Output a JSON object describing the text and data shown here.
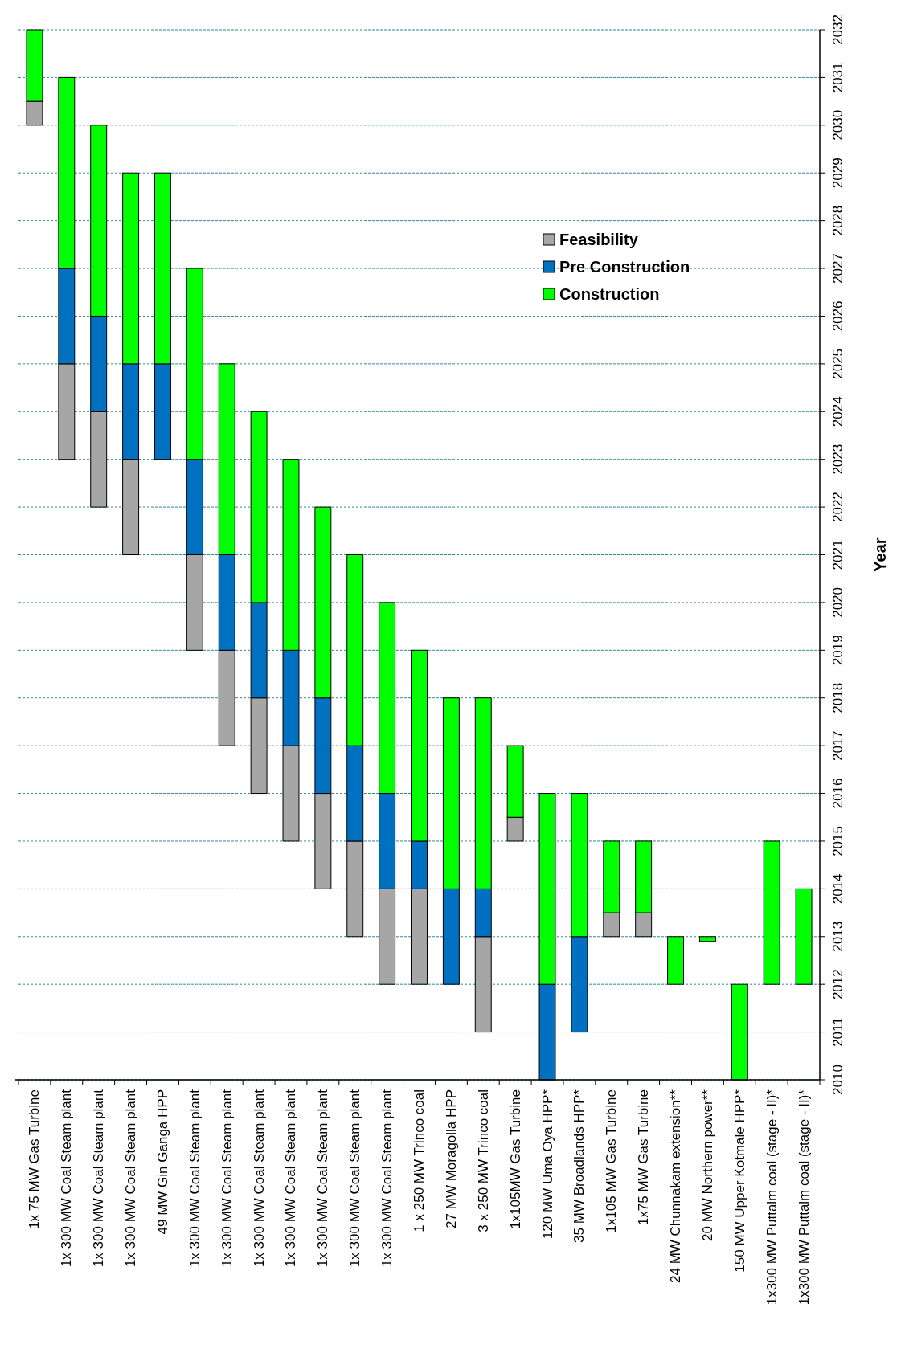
{
  "chart_data": {
    "type": "bar",
    "ylabel": "Year",
    "categories": [
      "1x 75 MW Gas Turbine",
      "1x 300 MW Coal Steam plant",
      "1x 300 MW Coal Steam plant",
      "1x 300 MW Coal Steam plant",
      "49 MW Gin Ganga HPP",
      "1x 300 MW Coal Steam plant",
      "1x 300 MW Coal Steam plant",
      "1x 300 MW Coal Steam plant",
      "1x 300 MW Coal Steam plant",
      "1x 300 MW Coal Steam plant",
      "1x 300 MW Coal Steam plant",
      "1x 300 MW Coal Steam plant",
      "1 x 250 MW Trinco coal",
      "27 MW Moragolla HPP",
      "3 x 250 MW Trinco coal",
      "1x105MW Gas Turbine",
      "120 MW Uma Oya HPP*",
      "35 MW Broadlands HPP*",
      "1x105 MW Gas Turbine",
      "1x75 MW Gas Turbine",
      "24 MW Chunnakam extension**",
      "20 MW Northern power**",
      "150 MW Upper Kotmale HPP*",
      "1x300 MW Puttalm coal (stage - II)*",
      "1x300 MW Puttalm coal (stage - II)*"
    ],
    "series": [
      {
        "name": "Feasibility",
        "color": "#a6a6a6",
        "base": [
          2030,
          2023,
          2022,
          2021,
          null,
          2019,
          2017,
          2016,
          2015,
          2014,
          2013,
          2012,
          2012,
          null,
          2011,
          2015,
          null,
          null,
          2013,
          2013,
          null,
          null,
          null,
          null,
          null
        ],
        "values": [
          0.5,
          2,
          2,
          2,
          null,
          2,
          2,
          2,
          2,
          2,
          2,
          2,
          2,
          null,
          2,
          0.5,
          null,
          null,
          0.5,
          0.5,
          null,
          null,
          null,
          null,
          null
        ]
      },
      {
        "name": "Pre Construction",
        "color": "#0070c0",
        "base": [
          null,
          2025,
          2024,
          2023,
          2023,
          2021,
          2019,
          2018,
          2017,
          2016,
          2015,
          2014,
          2014,
          2012,
          2013,
          null,
          2010,
          2011,
          null,
          null,
          null,
          null,
          null,
          null,
          null
        ],
        "values": [
          null,
          2,
          2,
          2,
          2,
          2,
          2,
          2,
          2,
          2,
          2,
          2,
          1,
          2,
          1,
          null,
          2,
          2,
          null,
          null,
          null,
          null,
          null,
          null,
          null
        ]
      },
      {
        "name": "Construction",
        "color": "#00ff00",
        "base": [
          2030.5,
          2027,
          2026,
          2025,
          2025,
          2023,
          2021,
          2020,
          2019,
          2018,
          2017,
          2016,
          2015,
          2014,
          2014,
          2015.5,
          2012,
          2013,
          2013.5,
          2013.5,
          2012,
          2012.9,
          2010,
          2012,
          2012
        ],
        "values": [
          1.5,
          4,
          4,
          4,
          4,
          4,
          4,
          4,
          4,
          4,
          4,
          4,
          4,
          4,
          4,
          1.5,
          4,
          3,
          1.5,
          1.5,
          1,
          0.1,
          2,
          3,
          2
        ]
      }
    ],
    "ylim": [
      2010,
      2032
    ],
    "yticks": [
      2010,
      2011,
      2012,
      2013,
      2014,
      2015,
      2016,
      2017,
      2018,
      2019,
      2020,
      2021,
      2022,
      2023,
      2024,
      2025,
      2026,
      2027,
      2028,
      2029,
      2030,
      2031,
      2032
    ],
    "grid": "y",
    "legend": "top right"
  }
}
